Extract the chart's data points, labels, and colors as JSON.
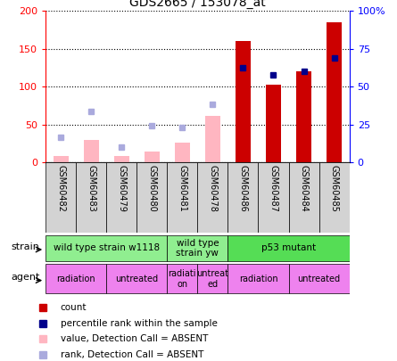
{
  "title": "GDS2665 / 153078_at",
  "samples": [
    "GSM60482",
    "GSM60483",
    "GSM60479",
    "GSM60480",
    "GSM60481",
    "GSM60478",
    "GSM60486",
    "GSM60487",
    "GSM60484",
    "GSM60485"
  ],
  "count_values": [
    null,
    null,
    null,
    null,
    null,
    null,
    160,
    102,
    120,
    185
  ],
  "count_absent": [
    8,
    30,
    8,
    14,
    26,
    62,
    null,
    null,
    null,
    null
  ],
  "percentile_rank": [
    null,
    null,
    null,
    null,
    null,
    null,
    125,
    115,
    120,
    138
  ],
  "percentile_rank_absent": [
    33,
    67,
    20,
    49,
    46,
    77,
    null,
    null,
    null,
    null
  ],
  "count_color": "#cc0000",
  "count_absent_color": "#ffb6c1",
  "percentile_color": "#00008b",
  "percentile_absent_color": "#aaaadd",
  "ylim": [
    0,
    200
  ],
  "yticks": [
    0,
    50,
    100,
    150,
    200
  ],
  "ytick_labels_left": [
    "0",
    "50",
    "100",
    "150",
    "200"
  ],
  "ytick_labels_right": [
    "0",
    "25",
    "50",
    "75",
    "100%"
  ],
  "strain_groups": [
    {
      "label": "wild type strain w1118",
      "start": 0,
      "end": 4,
      "color": "#90ee90"
    },
    {
      "label": "wild type\nstrain yw",
      "start": 4,
      "end": 6,
      "color": "#90ee90"
    },
    {
      "label": "p53 mutant",
      "start": 6,
      "end": 10,
      "color": "#55dd55"
    }
  ],
  "agent_groups": [
    {
      "label": "radiation",
      "start": 0,
      "end": 2,
      "color": "#ee82ee"
    },
    {
      "label": "untreated",
      "start": 2,
      "end": 4,
      "color": "#ee82ee"
    },
    {
      "label": "radiati\non",
      "start": 4,
      "end": 5,
      "color": "#ee82ee"
    },
    {
      "label": "untreat\ned",
      "start": 5,
      "end": 6,
      "color": "#ee82ee"
    },
    {
      "label": "radiation",
      "start": 6,
      "end": 8,
      "color": "#ee82ee"
    },
    {
      "label": "untreated",
      "start": 8,
      "end": 10,
      "color": "#ee82ee"
    }
  ],
  "legend_items": [
    {
      "color": "#cc0000",
      "label": "count"
    },
    {
      "color": "#00008b",
      "label": "percentile rank within the sample"
    },
    {
      "color": "#ffb6c1",
      "label": "value, Detection Call = ABSENT"
    },
    {
      "color": "#aaaadd",
      "label": "rank, Detection Call = ABSENT"
    }
  ],
  "bg_color": "#d3d3d3"
}
